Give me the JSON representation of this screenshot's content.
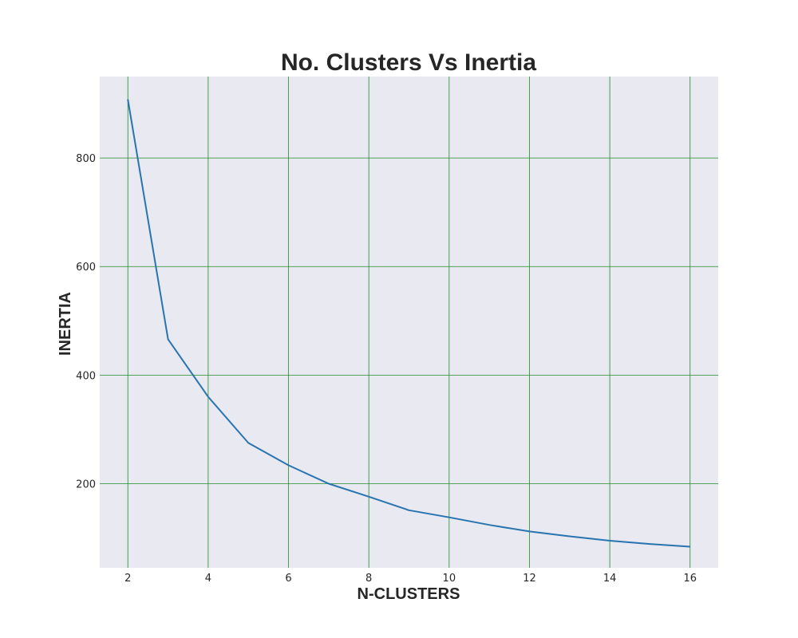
{
  "chart_data": {
    "type": "line",
    "title": "No. Clusters Vs Inertia",
    "xlabel": "N-CLUSTERS",
    "ylabel": "INERTIA",
    "xlim": [
      1.3,
      16.7
    ],
    "ylim": [
      45,
      950
    ],
    "xticks": [
      2,
      4,
      6,
      8,
      10,
      12,
      14,
      16
    ],
    "yticks": [
      200,
      400,
      600,
      800
    ],
    "grid": true,
    "series": [
      {
        "x": [
          2,
          3,
          4,
          5,
          6,
          7,
          8,
          9,
          10,
          11,
          12,
          13,
          14,
          15,
          16
        ],
        "y": [
          908,
          466,
          360,
          275,
          234,
          200,
          176,
          151,
          138,
          124,
          112,
          103,
          95,
          89,
          84
        ]
      }
    ],
    "colors": {
      "line": "#2874b0",
      "grid": "#1f8a2a",
      "plot_background": "#e8e9f1",
      "text": "#262626"
    }
  }
}
